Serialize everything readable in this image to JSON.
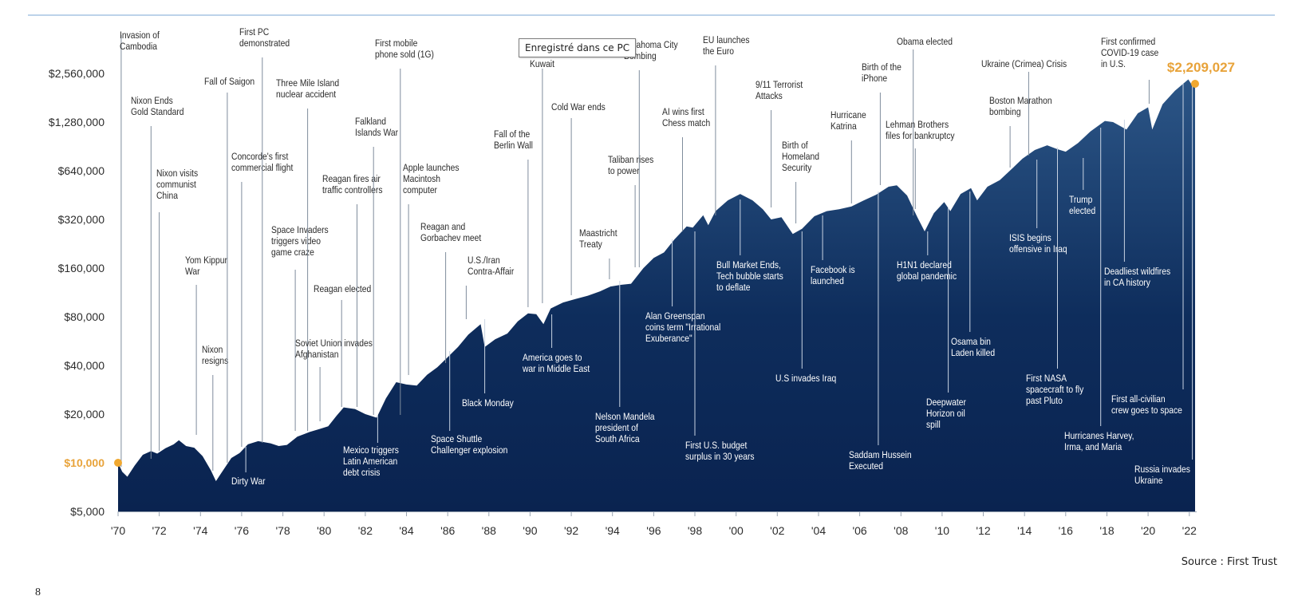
{
  "chart_data": {
    "type": "area",
    "title": "",
    "xlabel": "",
    "ylabel": "",
    "scale": "log2",
    "ylim": [
      5000,
      3000000
    ],
    "xlim": [
      1970,
      2023
    ],
    "area_color": "#0e2d5c",
    "start_marker_color": "#f0a830",
    "start_label": "$10,000",
    "end_label": "$2,209,027",
    "x_ticks": [
      {
        "x": 1970,
        "label": "'70"
      },
      {
        "x": 1972,
        "label": "'72"
      },
      {
        "x": 1974,
        "label": "'74"
      },
      {
        "x": 1976,
        "label": "'76"
      },
      {
        "x": 1978,
        "label": "'78"
      },
      {
        "x": 1980,
        "label": "'80"
      },
      {
        "x": 1982,
        "label": "'82"
      },
      {
        "x": 1984,
        "label": "'84"
      },
      {
        "x": 1986,
        "label": "'86"
      },
      {
        "x": 1988,
        "label": "'88"
      },
      {
        "x": 1990,
        "label": "'90"
      },
      {
        "x": 1992,
        "label": "'92"
      },
      {
        "x": 1994,
        "label": "'94"
      },
      {
        "x": 1996,
        "label": "'96"
      },
      {
        "x": 1998,
        "label": "'98"
      },
      {
        "x": 2000,
        "label": "'00"
      },
      {
        "x": 2002,
        "label": "'02"
      },
      {
        "x": 2004,
        "label": "'04"
      },
      {
        "x": 2006,
        "label": "'06"
      },
      {
        "x": 2008,
        "label": "'08"
      },
      {
        "x": 2010,
        "label": "'10"
      },
      {
        "x": 2012,
        "label": "'12"
      },
      {
        "x": 2014,
        "label": "'14"
      },
      {
        "x": 2016,
        "label": "'16"
      },
      {
        "x": 2018,
        "label": "'18"
      },
      {
        "x": 2020,
        "label": "'20"
      },
      {
        "x": 2022,
        "label": "'22"
      }
    ],
    "y_ticks": [
      {
        "value": 5000,
        "label": "$5,000"
      },
      {
        "value": 10000,
        "label": "$10,000",
        "highlight": true
      },
      {
        "value": 20000,
        "label": "$20,000"
      },
      {
        "value": 40000,
        "label": "$40,000"
      },
      {
        "value": 80000,
        "label": "$80,000"
      },
      {
        "value": 160000,
        "label": "$160,000"
      },
      {
        "value": 320000,
        "label": "$320,000"
      },
      {
        "value": 640000,
        "label": "$640,000"
      },
      {
        "value": 1280000,
        "label": "$1,280,000"
      },
      {
        "value": 2560000,
        "label": "$2,560,000"
      }
    ],
    "series": [
      {
        "points": [
          [
            1970.0,
            10000
          ],
          [
            1970.2,
            8800
          ],
          [
            1970.45,
            8200
          ],
          [
            1970.8,
            9600
          ],
          [
            1971.2,
            11200
          ],
          [
            1971.6,
            11800
          ],
          [
            1971.9,
            11400
          ],
          [
            1972.3,
            12300
          ],
          [
            1972.7,
            13000
          ],
          [
            1972.95,
            13800
          ],
          [
            1973.3,
            12700
          ],
          [
            1973.7,
            12400
          ],
          [
            1974.1,
            11000
          ],
          [
            1974.5,
            9000
          ],
          [
            1974.75,
            7700
          ],
          [
            1975.0,
            8600
          ],
          [
            1975.5,
            10700
          ],
          [
            1975.9,
            11500
          ],
          [
            1976.3,
            13000
          ],
          [
            1976.8,
            13600
          ],
          [
            1977.4,
            13200
          ],
          [
            1977.8,
            12700
          ],
          [
            1978.2,
            12900
          ],
          [
            1978.7,
            14500
          ],
          [
            1979.3,
            15500
          ],
          [
            1979.8,
            16200
          ],
          [
            1980.2,
            16800
          ],
          [
            1980.6,
            19500
          ],
          [
            1980.95,
            22000
          ],
          [
            1981.5,
            21500
          ],
          [
            1982.0,
            20000
          ],
          [
            1982.55,
            19000
          ],
          [
            1983.0,
            25000
          ],
          [
            1983.5,
            31500
          ],
          [
            1984.0,
            30500
          ],
          [
            1984.5,
            30000
          ],
          [
            1985.0,
            35000
          ],
          [
            1985.5,
            39000
          ],
          [
            1986.0,
            45000
          ],
          [
            1986.5,
            52000
          ],
          [
            1987.0,
            62000
          ],
          [
            1987.6,
            72000
          ],
          [
            1987.8,
            52000
          ],
          [
            1988.3,
            58000
          ],
          [
            1988.9,
            63000
          ],
          [
            1989.4,
            75000
          ],
          [
            1989.9,
            84000
          ],
          [
            1990.3,
            83000
          ],
          [
            1990.65,
            72000
          ],
          [
            1991.0,
            90000
          ],
          [
            1991.6,
            98000
          ],
          [
            1992.2,
            103000
          ],
          [
            1992.8,
            108000
          ],
          [
            1993.4,
            115000
          ],
          [
            1993.9,
            123000
          ],
          [
            1994.4,
            126000
          ],
          [
            1994.9,
            128000
          ],
          [
            1995.5,
            160000
          ],
          [
            1996.0,
            185000
          ],
          [
            1996.5,
            200000
          ],
          [
            1997.0,
            240000
          ],
          [
            1997.6,
            290000
          ],
          [
            1997.9,
            285000
          ],
          [
            1998.4,
            340000
          ],
          [
            1998.65,
            295000
          ],
          [
            1999.0,
            360000
          ],
          [
            1999.6,
            420000
          ],
          [
            2000.2,
            460000
          ],
          [
            2000.8,
            420000
          ],
          [
            2001.3,
            370000
          ],
          [
            2001.7,
            320000
          ],
          [
            2002.2,
            330000
          ],
          [
            2002.75,
            260000
          ],
          [
            2003.2,
            280000
          ],
          [
            2003.8,
            335000
          ],
          [
            2004.4,
            360000
          ],
          [
            2005.0,
            370000
          ],
          [
            2005.6,
            385000
          ],
          [
            2006.2,
            420000
          ],
          [
            2006.8,
            455000
          ],
          [
            2007.4,
            510000
          ],
          [
            2007.8,
            520000
          ],
          [
            2008.3,
            450000
          ],
          [
            2008.8,
            330000
          ],
          [
            2009.15,
            270000
          ],
          [
            2009.6,
            350000
          ],
          [
            2010.1,
            410000
          ],
          [
            2010.4,
            360000
          ],
          [
            2010.9,
            460000
          ],
          [
            2011.4,
            500000
          ],
          [
            2011.7,
            420000
          ],
          [
            2012.2,
            510000
          ],
          [
            2012.8,
            560000
          ],
          [
            2013.4,
            660000
          ],
          [
            2013.9,
            760000
          ],
          [
            2014.5,
            860000
          ],
          [
            2015.1,
            920000
          ],
          [
            2015.6,
            870000
          ],
          [
            2016.0,
            840000
          ],
          [
            2016.6,
            950000
          ],
          [
            2017.2,
            1120000
          ],
          [
            2017.9,
            1300000
          ],
          [
            2018.3,
            1280000
          ],
          [
            2018.95,
            1150000
          ],
          [
            2019.5,
            1450000
          ],
          [
            2020.0,
            1580000
          ],
          [
            2020.2,
            1150000
          ],
          [
            2020.7,
            1650000
          ],
          [
            2021.3,
            2000000
          ],
          [
            2021.95,
            2350000
          ],
          [
            2022.2,
            2100000
          ],
          [
            2022.28,
            2209027
          ]
        ]
      }
    ],
    "events": [
      {
        "x": 1970.15,
        "text": [
          "Invasion of",
          "Cambodia"
        ]
      },
      {
        "x": 1971.6,
        "text": [
          "Nixon Ends",
          "Gold Standard"
        ]
      },
      {
        "x": 1972.0,
        "text": [
          "Nixon visits",
          "communist",
          "China"
        ]
      },
      {
        "x": 1973.8,
        "text": [
          "Yom Kippur",
          "War"
        ]
      },
      {
        "x": 1974.6,
        "text": [
          "Nixon",
          "resigns"
        ]
      },
      {
        "x": 1975.3,
        "text": [
          "Fall of Saigon"
        ]
      },
      {
        "x": 1976.0,
        "text": [
          "Concorde's first",
          "commercial flight"
        ]
      },
      {
        "x": 1976.2,
        "text": [
          "Dirty War"
        ]
      },
      {
        "x": 1977.0,
        "text": [
          "First PC",
          "demonstrated"
        ]
      },
      {
        "x": 1978.6,
        "text": [
          "Space Invaders",
          "triggers video",
          "game craze"
        ]
      },
      {
        "x": 1979.2,
        "text": [
          "Three Mile Island",
          "nuclear accident"
        ]
      },
      {
        "x": 1979.8,
        "text": [
          "Soviet Union invades",
          "Afghanistan"
        ]
      },
      {
        "x": 1980.85,
        "text": [
          "Reagan elected"
        ]
      },
      {
        "x": 1981.6,
        "text": [
          "Reagan fires air",
          "traffic controllers"
        ]
      },
      {
        "x": 1982.4,
        "text": [
          "Falkland",
          "Islands War"
        ]
      },
      {
        "x": 1982.6,
        "text": [
          "Mexico triggers",
          "Latin American",
          "debt crisis"
        ]
      },
      {
        "x": 1983.7,
        "text": [
          "First mobile",
          "phone sold (1G)"
        ]
      },
      {
        "x": 1984.1,
        "text": [
          "Apple launches",
          "Macintosh",
          "computer"
        ]
      },
      {
        "x": 1985.9,
        "text": [
          "Reagan and",
          "Gorbachev meet"
        ]
      },
      {
        "x": 1986.1,
        "text": [
          "Space Shuttle",
          "Challenger explosion"
        ]
      },
      {
        "x": 1986.9,
        "text": [
          "U.S./Iran",
          "Contra-Affair"
        ]
      },
      {
        "x": 1987.8,
        "text": [
          "Black Monday"
        ]
      },
      {
        "x": 1989.9,
        "text": [
          "Fall of the",
          "Berlin Wall"
        ]
      },
      {
        "x": 1990.6,
        "text": [
          "Kuwait"
        ]
      },
      {
        "x": 1991.05,
        "text": [
          "America goes to",
          "war in Middle East"
        ]
      },
      {
        "x": 1992.0,
        "text": [
          "Cold War ends"
        ]
      },
      {
        "x": 1993.85,
        "text": [
          "Maastricht",
          "Treaty"
        ]
      },
      {
        "x": 1994.35,
        "text": [
          "Nelson Mandela",
          "president of",
          "South Africa"
        ]
      },
      {
        "x": 1995.1,
        "text": [
          "Taliban rises",
          "to power"
        ]
      },
      {
        "x": 1995.3,
        "text": [
          "Oklahoma City",
          "Bombing"
        ]
      },
      {
        "x": 1996.9,
        "text": [
          "Alan Greenspan",
          "coins term \"Irrational",
          "Exuberance\""
        ]
      },
      {
        "x": 1997.4,
        "text": [
          "AI wins first",
          "Chess match"
        ]
      },
      {
        "x": 1998.0,
        "text": [
          "First U.S. budget",
          "surplus in 30 years"
        ]
      },
      {
        "x": 1999.0,
        "text": [
          "EU launches",
          "the Euro"
        ]
      },
      {
        "x": 2000.2,
        "text": [
          "Bull Market Ends,",
          "Tech bubble starts",
          "to deflate"
        ]
      },
      {
        "x": 2001.7,
        "text": [
          "9/11 Terrorist",
          "Attacks"
        ]
      },
      {
        "x": 2002.9,
        "text": [
          "Birth of",
          "Homeland",
          "Security"
        ]
      },
      {
        "x": 2003.2,
        "text": [
          "U.S invades Iraq"
        ]
      },
      {
        "x": 2004.2,
        "text": [
          "Facebook is",
          "launched"
        ]
      },
      {
        "x": 2005.6,
        "text": [
          "Hurricane",
          "Katrina"
        ]
      },
      {
        "x": 2006.9,
        "text": [
          "Saddam Hussein",
          "Executed"
        ]
      },
      {
        "x": 2007.0,
        "text": [
          "Birth of the",
          "iPhone"
        ]
      },
      {
        "x": 2008.6,
        "text": [
          "Obama elected"
        ]
      },
      {
        "x": 2008.7,
        "text": [
          "Lehman Brothers",
          "files for bankruptcy"
        ]
      },
      {
        "x": 2009.3,
        "text": [
          "H1N1 declared",
          "global pandemic"
        ]
      },
      {
        "x": 2010.3,
        "text": [
          "Deepwater",
          "Horizon oil",
          "spill"
        ]
      },
      {
        "x": 2011.35,
        "text": [
          "Osama bin",
          "Laden killed"
        ]
      },
      {
        "x": 2013.3,
        "text": [
          "Boston Marathon",
          "bombing"
        ]
      },
      {
        "x": 2014.2,
        "text": [
          "Ukraine (Crimea) Crisis"
        ]
      },
      {
        "x": 2014.6,
        "text": [
          "ISIS begins",
          "offensive in Iraq"
        ]
      },
      {
        "x": 2015.6,
        "text": [
          "First NASA",
          "spacecraft to fly",
          "past Pluto"
        ]
      },
      {
        "x": 2016.85,
        "text": [
          "Trump",
          "elected"
        ]
      },
      {
        "x": 2017.7,
        "text": [
          "Hurricanes Harvey,",
          "Irma, and Maria"
        ]
      },
      {
        "x": 2018.85,
        "text": [
          "Deadliest wildfires",
          "in CA history"
        ]
      },
      {
        "x": 2020.05,
        "text": [
          "First confirmed",
          "COVID-19 case",
          "in U.S."
        ]
      },
      {
        "x": 2021.7,
        "text": [
          "First all-civilian",
          "crew goes to space"
        ]
      },
      {
        "x": 2022.15,
        "text": [
          "Russia invades",
          "Ukraine"
        ]
      }
    ]
  },
  "source": "Source : First Trust",
  "page_number": "8",
  "tooltip": "Enregistré dans ce PC"
}
